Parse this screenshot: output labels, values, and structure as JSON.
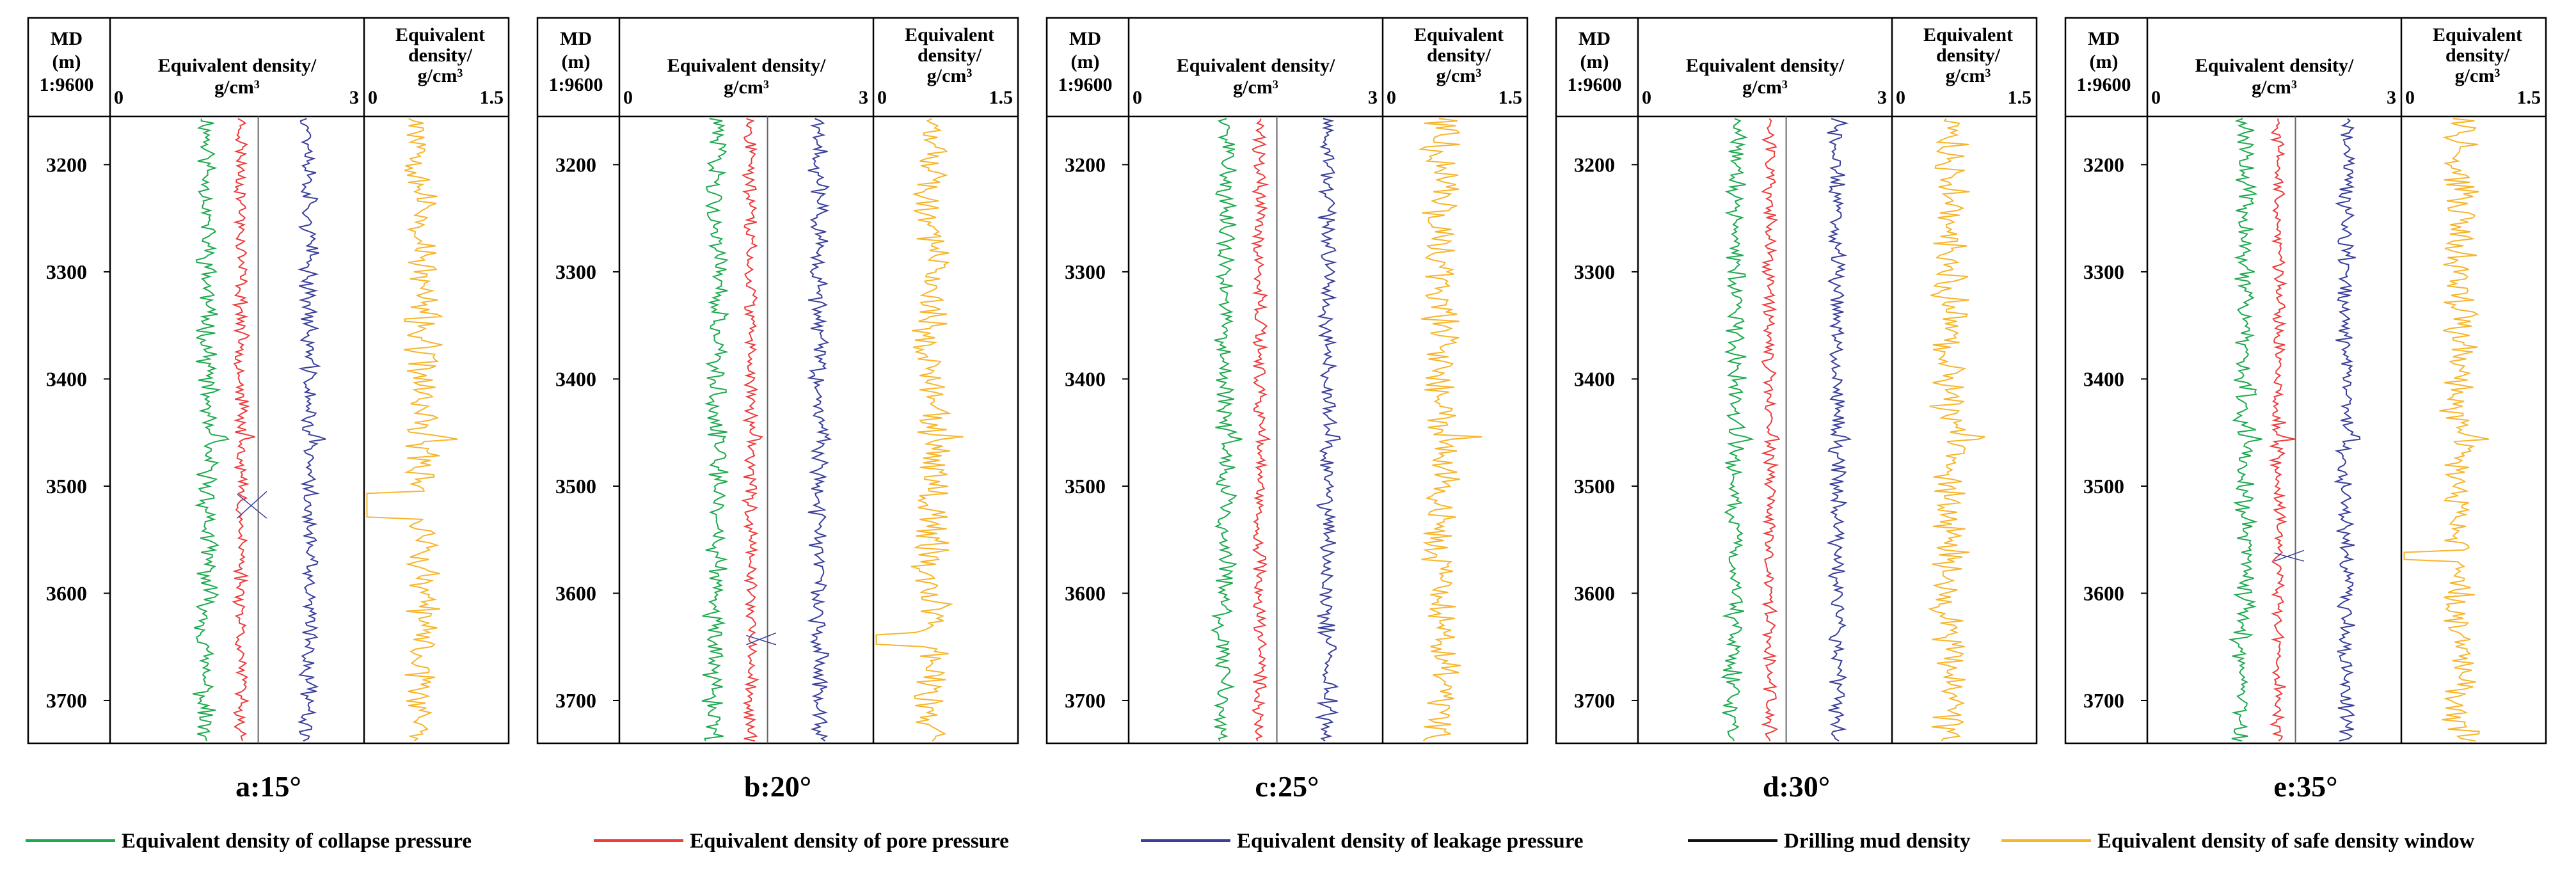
{
  "chart_data": [
    {
      "panel_id": "a",
      "caption": "a:15°",
      "inclination_deg": 15,
      "type": "line"
    },
    {
      "panel_id": "b",
      "caption": "b:20°",
      "inclination_deg": 20,
      "type": "line"
    },
    {
      "panel_id": "c",
      "caption": "c:25°",
      "inclination_deg": 25,
      "type": "line"
    },
    {
      "panel_id": "d",
      "caption": "d:30°",
      "inclination_deg": 30,
      "type": "line"
    },
    {
      "panel_id": "e",
      "caption": "e:35°",
      "inclination_deg": 35,
      "type": "line"
    }
  ],
  "shared": {
    "depth_header": {
      "line1": "MD",
      "line2": "(m)",
      "line3": "1:9600"
    },
    "track1": {
      "title_line1": "Equivalent density/",
      "title_line2": "g/cm³",
      "xmin_label": "0",
      "xmax_label": "3",
      "xlim": [
        0,
        3
      ]
    },
    "track2": {
      "title_line1": "Equivalent",
      "title_line2": "density/",
      "title_line3": "g/cm³",
      "xmin_label": "0",
      "xmax_label": "1.5",
      "xlim": [
        0,
        1.5
      ]
    },
    "depth_ticks": [
      "3200",
      "3300",
      "3400",
      "3500",
      "3600",
      "3700"
    ],
    "depth_range": [
      3155,
      3740
    ],
    "mean_values": {
      "collapse": 1.15,
      "pore": 1.55,
      "leakage": 2.35,
      "mud": 1.75,
      "window": 0.6
    },
    "anomalies": {
      "a": {
        "depth_start": 3505,
        "depth_end": 3530
      },
      "b": {
        "depth_start": 3637,
        "depth_end": 3648
      },
      "e": {
        "depth_start": 3560,
        "depth_end": 3570
      }
    }
  },
  "legend": [
    {
      "label": "Equivalent density of collapse pressure",
      "color": "#1daa4e"
    },
    {
      "label": "Equivalent density of pore pressure",
      "color": "#ee3b3b"
    },
    {
      "label": "Equivalent density of leakage pressure",
      "color": "#3a3f9b"
    },
    {
      "label": "Drilling mud density",
      "color": "#111111"
    },
    {
      "label": "Equivalent density of safe density window",
      "color": "#f7b52c"
    }
  ]
}
